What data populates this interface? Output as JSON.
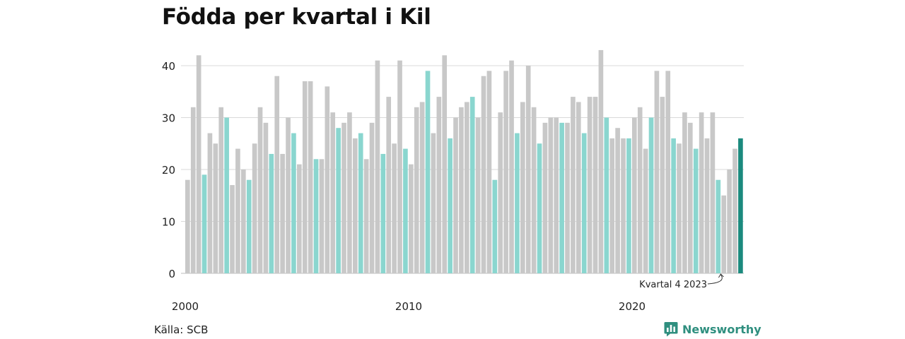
{
  "title": "Födda per kvartal i Kil",
  "source": "Källa: SCB",
  "brand": "Newsworthy",
  "colors": {
    "bar": "#c8c8c8",
    "highlight_quarter": "#8ad6cf",
    "latest": "#1b8a7e",
    "grid": "#d9d9d9",
    "brand": "#2f8f7f"
  },
  "chart_data": {
    "type": "bar",
    "title": "Födda per kvartal i Kil",
    "xlabel": "",
    "ylabel": "",
    "ylim": [
      0,
      45
    ],
    "yticks": [
      0,
      10,
      20,
      30,
      40
    ],
    "x_tick_labels": [
      "2000",
      "2010",
      "2020"
    ],
    "grid": true,
    "start_year": 2000,
    "highlight": "quarter 4 of each year",
    "annotation": "Kvartal 4 2023",
    "values": [
      18,
      32,
      42,
      19,
      27,
      25,
      32,
      30,
      17,
      24,
      20,
      18,
      25,
      32,
      29,
      23,
      38,
      23,
      30,
      27,
      21,
      37,
      37,
      22,
      22,
      36,
      31,
      28,
      29,
      31,
      26,
      27,
      22,
      29,
      41,
      23,
      34,
      25,
      41,
      24,
      21,
      32,
      33,
      39,
      27,
      34,
      42,
      26,
      30,
      32,
      33,
      34,
      30,
      38,
      39,
      18,
      31,
      39,
      41,
      27,
      33,
      40,
      32,
      25,
      29,
      30,
      30,
      29,
      29,
      34,
      33,
      27,
      34,
      34,
      43,
      30,
      26,
      28,
      26,
      26,
      30,
      32,
      24,
      30,
      39,
      34,
      39,
      26,
      25,
      31,
      29,
      24,
      31,
      26,
      31,
      18,
      15,
      20,
      24,
      26
    ]
  }
}
